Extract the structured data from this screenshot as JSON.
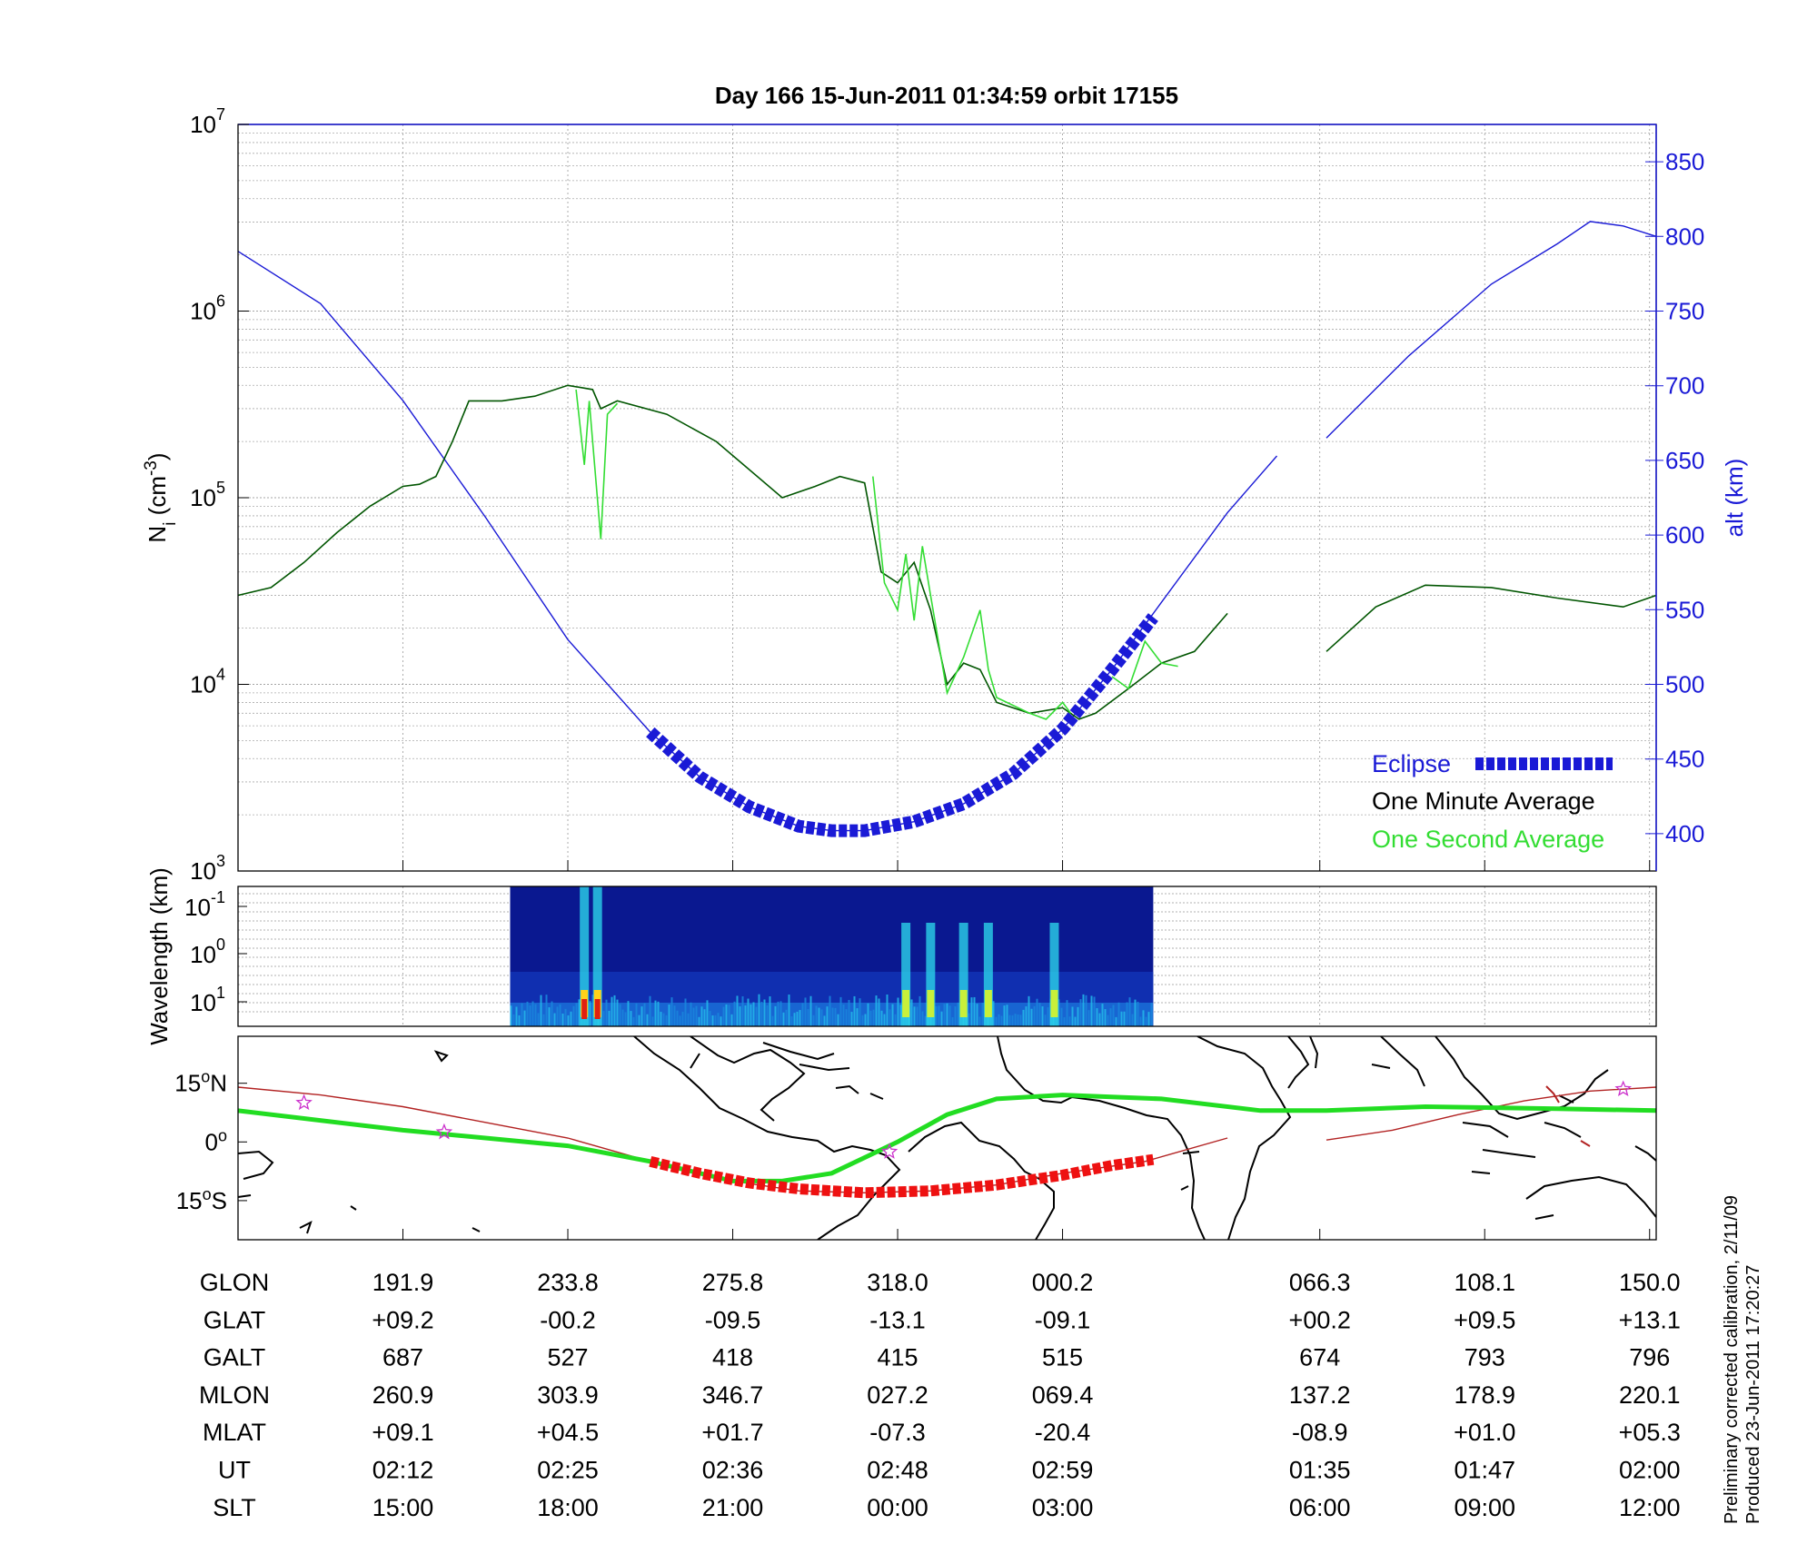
{
  "title": "Day 166  15-Jun-2011 01:34:59   orbit 17155",
  "colors": {
    "ni_minute": "#005500",
    "ni_second": "#33dd33",
    "altitude": "#1a1ad6",
    "eclipse": "#1a1ad6",
    "orbit_track": "#b22222",
    "eclipse_track": "#ee1111",
    "magnetic_equator": "#22dd22",
    "stars": "#cc33cc"
  },
  "chart_data": [
    {
      "type": "line",
      "panel": "density-altitude",
      "yscale_left": "log",
      "ylim_left": [
        1000,
        10000000
      ],
      "ylabel_left": "N_i (cm^-3)",
      "ylabel_left_main": "N",
      "ylabel_left_sub": "i",
      "ylabel_left_unit": " (cm",
      "ylabel_left_exp": "-3",
      "ylabel_left_close": ")",
      "y_ticks_left": [
        {
          "base": "10",
          "exp": "3",
          "value": 1000
        },
        {
          "base": "10",
          "exp": "4",
          "value": 10000
        },
        {
          "base": "10",
          "exp": "5",
          "value": 100000
        },
        {
          "base": "10",
          "exp": "6",
          "value": 1000000
        },
        {
          "base": "10",
          "exp": "7",
          "value": 10000000
        }
      ],
      "ylabel_right": "alt (km)",
      "ylim_right": [
        375,
        875
      ],
      "y_ticks_right": [
        400,
        450,
        500,
        550,
        600,
        650,
        700,
        750,
        800,
        850
      ],
      "x_units": "minutes after 02:12 UT",
      "xlim": [
        0,
        86
      ],
      "grid": true,
      "legend_position": "bottom-right",
      "legend": [
        {
          "label": "Eclipse",
          "series": "eclipse"
        },
        {
          "label": "One Minute Average",
          "series": "ni_minute"
        },
        {
          "label": "One Second Average",
          "series": "ni_second"
        }
      ],
      "series": [
        {
          "key": "altitude",
          "axis": "right",
          "segments": [
            [
              [
                0,
                790
              ],
              [
                5,
                755
              ],
              [
                10,
                690
              ],
              [
                15,
                612
              ],
              [
                20,
                530
              ],
              [
                25,
                468
              ],
              [
                28,
                438
              ],
              [
                31,
                418
              ],
              [
                34,
                405
              ],
              [
                36,
                402
              ],
              [
                38,
                402
              ],
              [
                41,
                408
              ],
              [
                44,
                420
              ],
              [
                47,
                440
              ],
              [
                50,
                470
              ],
              [
                53,
                510
              ],
              [
                56,
                555
              ],
              [
                60,
                615
              ],
              [
                63,
                653
              ]
            ],
            [
              [
                66,
                665
              ],
              [
                71,
                720
              ],
              [
                76,
                768
              ],
              [
                80,
                795
              ],
              [
                82,
                810
              ],
              [
                84,
                807
              ],
              [
                86,
                800
              ]
            ]
          ]
        },
        {
          "key": "ni_minute",
          "axis": "left",
          "segments": [
            [
              [
                0,
                30000
              ],
              [
                2,
                33000
              ],
              [
                4,
                45000
              ],
              [
                6,
                65000
              ],
              [
                8,
                90000
              ],
              [
                10,
                115000
              ],
              [
                11,
                118000
              ],
              [
                12,
                130000
              ],
              [
                13,
                200000
              ],
              [
                14,
                330000
              ],
              [
                16,
                330000
              ],
              [
                18,
                350000
              ],
              [
                20,
                400000
              ],
              [
                21.5,
                380000
              ],
              [
                22,
                300000
              ],
              [
                23,
                330000
              ],
              [
                26,
                280000
              ],
              [
                29,
                200000
              ],
              [
                33,
                100000
              ],
              [
                35,
                115000
              ],
              [
                36.5,
                130000
              ],
              [
                38,
                120000
              ],
              [
                39,
                40000
              ],
              [
                40,
                35000
              ],
              [
                41,
                45000
              ],
              [
                42,
                25000
              ],
              [
                43,
                10000
              ],
              [
                44,
                13000
              ],
              [
                45,
                12000
              ],
              [
                46,
                8000
              ],
              [
                48,
                7000
              ],
              [
                50,
                7500
              ],
              [
                51,
                6500
              ],
              [
                52,
                7000
              ],
              [
                54,
                9500
              ],
              [
                56,
                13000
              ],
              [
                58,
                15000
              ],
              [
                60,
                24000
              ]
            ],
            [
              [
                66,
                15000
              ],
              [
                69,
                26000
              ],
              [
                72,
                34000
              ],
              [
                76,
                33000
              ],
              [
                80,
                29000
              ],
              [
                84,
                26000
              ],
              [
                86,
                30000
              ]
            ]
          ]
        },
        {
          "key": "ni_second",
          "axis": "left",
          "segments": [
            [
              [
                20.5,
                380000
              ],
              [
                21,
                150000
              ],
              [
                21.3,
                330000
              ],
              [
                22,
                60000
              ],
              [
                22.4,
                280000
              ],
              [
                23,
                320000
              ]
            ],
            [
              [
                38.5,
                130000
              ],
              [
                39.2,
                35000
              ],
              [
                40,
                25000
              ],
              [
                40.5,
                50000
              ],
              [
                41,
                22000
              ],
              [
                41.5,
                55000
              ],
              [
                42,
                30000
              ],
              [
                43,
                9000
              ],
              [
                44,
                14000
              ],
              [
                45,
                25000
              ],
              [
                45.5,
                12000
              ],
              [
                46,
                8500
              ],
              [
                48,
                7000
              ],
              [
                49,
                6500
              ],
              [
                50,
                8000
              ],
              [
                50.5,
                7000
              ]
            ],
            [
              [
                53,
                11000
              ],
              [
                54,
                9500
              ],
              [
                55,
                17000
              ],
              [
                56,
                13000
              ],
              [
                57,
                12500
              ]
            ]
          ]
        },
        {
          "key": "eclipse",
          "axis": "right",
          "style": "thick-dashed",
          "segments": [
            [
              [
                25,
                468
              ],
              [
                28,
                438
              ],
              [
                31,
                418
              ],
              [
                34,
                405
              ],
              [
                36,
                402
              ],
              [
                38,
                402
              ],
              [
                41,
                408
              ],
              [
                44,
                420
              ],
              [
                47,
                440
              ],
              [
                50,
                470
              ],
              [
                53,
                510
              ],
              [
                55.5,
                545
              ]
            ]
          ]
        }
      ]
    },
    {
      "type": "heatmap",
      "panel": "spectrogram",
      "ylabel": "Wavelength (km)",
      "y_ticks": [
        {
          "base": "10",
          "exp": "-1"
        },
        {
          "base": "10",
          "exp": "0"
        },
        {
          "base": "10",
          "exp": "1"
        }
      ],
      "x_extent": [
        16.5,
        55.5
      ],
      "bright_bands": [
        21,
        21.8,
        40.5,
        42,
        44,
        45.5,
        49.5
      ]
    },
    {
      "type": "map",
      "panel": "ground-track",
      "y_ticks": [
        {
          "deg": "15",
          "hemi": "N",
          "lat": 15
        },
        {
          "deg": "0",
          "hemi": "",
          "lat": 0
        },
        {
          "deg": "15",
          "hemi": "S",
          "lat": -15
        }
      ],
      "ylim": [
        -25,
        27
      ],
      "orbit_track": [
        [
          [
            0,
            14
          ],
          [
            5,
            12
          ],
          [
            10,
            9
          ],
          [
            15,
            5
          ],
          [
            20,
            1
          ],
          [
            25,
            -5
          ],
          [
            30,
            -10
          ],
          [
            34,
            -12.5
          ],
          [
            38,
            -13
          ],
          [
            42,
            -12.5
          ],
          [
            46,
            -11
          ],
          [
            50,
            -8
          ],
          [
            55,
            -5
          ],
          [
            60,
            1
          ]
        ],
        [
          [
            66,
            0.5
          ],
          [
            70,
            3
          ],
          [
            74,
            7
          ],
          [
            78,
            10.5
          ],
          [
            82,
            13
          ],
          [
            86,
            14
          ]
        ]
      ],
      "eclipse_track": [
        [
          25,
          -5
        ],
        [
          28,
          -8
        ],
        [
          31,
          -10.5
        ],
        [
          34,
          -12
        ],
        [
          38,
          -13
        ],
        [
          42,
          -12.5
        ],
        [
          46,
          -11
        ],
        [
          50,
          -8.5
        ],
        [
          53,
          -6
        ],
        [
          55.5,
          -4.5
        ]
      ],
      "magnetic_equator": [
        [
          0,
          8
        ],
        [
          10,
          3
        ],
        [
          20,
          -1
        ],
        [
          25,
          -5
        ],
        [
          30,
          -10
        ],
        [
          33,
          -10
        ],
        [
          36,
          -8
        ],
        [
          40,
          0
        ],
        [
          43,
          7
        ],
        [
          46,
          11
        ],
        [
          50,
          12
        ],
        [
          56,
          11
        ],
        [
          62,
          8
        ],
        [
          66,
          8
        ],
        [
          72,
          9
        ],
        [
          80,
          8.5
        ],
        [
          86,
          8
        ]
      ],
      "stars": [
        [
          4,
          10
        ],
        [
          12.5,
          2.5
        ],
        [
          39.5,
          -2.5
        ],
        [
          84,
          13.5
        ]
      ]
    }
  ],
  "table": {
    "row_labels": [
      "GLON",
      "GLAT",
      "GALT",
      "MLON",
      "MLAT",
      "UT",
      "SLT"
    ],
    "columns": [
      [
        "191.9",
        "+09.2",
        "687",
        "260.9",
        "+09.1",
        "02:12",
        "15:00"
      ],
      [
        "233.8",
        "-00.2",
        "527",
        "303.9",
        "+04.5",
        "02:25",
        "18:00"
      ],
      [
        "275.8",
        "-09.5",
        "418",
        "346.7",
        "+01.7",
        "02:36",
        "21:00"
      ],
      [
        "318.0",
        "-13.1",
        "415",
        "027.2",
        "-07.3",
        "02:48",
        "00:00"
      ],
      [
        "000.2",
        "-09.1",
        "515",
        "069.4",
        "-20.4",
        "02:59",
        "03:00"
      ],
      [
        "066.3",
        "+00.2",
        "674",
        "137.2",
        "-08.9",
        "01:35",
        "06:00"
      ],
      [
        "108.1",
        "+09.5",
        "793",
        "178.9",
        "+01.0",
        "01:47",
        "09:00"
      ],
      [
        "150.0",
        "+13.1",
        "796",
        "220.1",
        "+05.3",
        "02:00",
        "12:00"
      ]
    ],
    "column_minutes": [
      10,
      20,
      30,
      40,
      50,
      65.6,
      75.6,
      85.6
    ]
  },
  "side_note": {
    "line1": "Preliminary corrected calibration, 2/11/09",
    "line2": "Produced 23-Jun-2011 17:20:27"
  }
}
